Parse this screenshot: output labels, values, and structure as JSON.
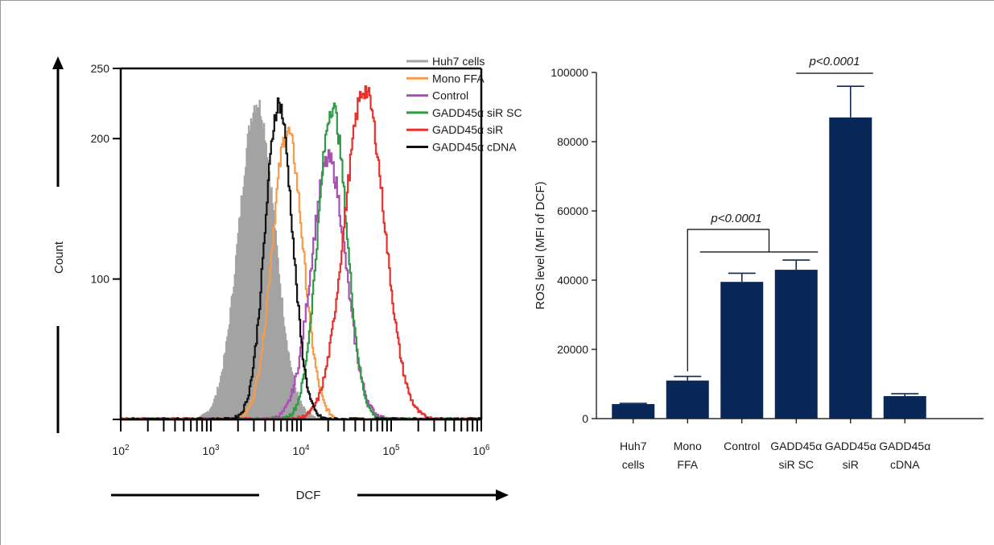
{
  "chart_data": [
    {
      "type": "line",
      "subtype": "flow-cytometry-histogram",
      "xlabel": "DCF",
      "ylabel": "Count",
      "x_scale": "log",
      "xlim": [
        100,
        1000000
      ],
      "ylim": [
        0,
        250
      ],
      "y_ticks": [
        "250",
        "200",
        "100"
      ],
      "x_ticks": [
        {
          "base": "10",
          "exp": "2"
        },
        {
          "base": "10",
          "exp": "3"
        },
        {
          "base": "10",
          "exp": "4"
        },
        {
          "base": "10",
          "exp": "5"
        },
        {
          "base": "10",
          "exp": "6"
        }
      ],
      "legend_position": "top-right",
      "series": [
        {
          "name": "Huh7 cells",
          "color": "#a3a3a3",
          "filled": true,
          "peak_x": 3200,
          "peak_y": 226,
          "sd_log": 0.2
        },
        {
          "name": "Mono FFA",
          "color": "#f59b4b",
          "filled": false,
          "peak_x": 7000,
          "peak_y": 205,
          "sd_log": 0.17
        },
        {
          "name": "Control",
          "color": "#a94fb5",
          "filled": false,
          "peak_x": 20000,
          "peak_y": 185,
          "sd_log": 0.19
        },
        {
          "name": "GADD45α siR SC",
          "color": "#2e9a44",
          "filled": false,
          "peak_x": 22000,
          "peak_y": 223,
          "sd_log": 0.16
        },
        {
          "name": "GADD45α siR",
          "color": "#e8302c",
          "filled": false,
          "peak_x": 50000,
          "peak_y": 235,
          "sd_log": 0.22
        },
        {
          "name": "GADD45α cDNA",
          "color": "#111111",
          "filled": false,
          "peak_x": 5600,
          "peak_y": 225,
          "sd_log": 0.15
        }
      ]
    },
    {
      "type": "bar",
      "ylabel": "ROS level (MFI of DCF)",
      "ylim": [
        0,
        100000
      ],
      "y_ticks": [
        0,
        20000,
        40000,
        60000,
        80000,
        100000
      ],
      "bar_color": "#0a2857",
      "categories": [
        [
          "Huh7",
          "cells"
        ],
        [
          "Mono",
          "FFA"
        ],
        [
          "Control",
          ""
        ],
        [
          "GADD45α",
          "siR SC"
        ],
        [
          "GADD45α",
          "siR"
        ],
        [
          "GADD45α",
          "cDNA"
        ]
      ],
      "values": [
        4200,
        11000,
        39500,
        43000,
        87000,
        6500
      ],
      "errors": [
        200,
        1200,
        2500,
        2800,
        9000,
        700
      ],
      "annotations": [
        {
          "text": "p<0.0001",
          "from_bar": 1,
          "to_bars": [
            2,
            3
          ]
        },
        {
          "text": "p<0.0001",
          "from_bar": 3,
          "to_bar": 4
        }
      ]
    }
  ]
}
